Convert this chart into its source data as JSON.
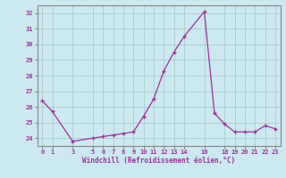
{
  "x": [
    0,
    1,
    3,
    5,
    6,
    7,
    8,
    9,
    10,
    11,
    12,
    13,
    14,
    16,
    17,
    18,
    19,
    20,
    21,
    22,
    23
  ],
  "y": [
    26.4,
    25.7,
    23.8,
    24.0,
    24.1,
    24.2,
    24.3,
    24.4,
    25.4,
    26.5,
    28.3,
    29.5,
    30.5,
    32.1,
    25.6,
    24.9,
    24.4,
    24.4,
    24.4,
    24.8,
    24.6
  ],
  "xticks": [
    0,
    1,
    3,
    5,
    6,
    7,
    8,
    9,
    10,
    11,
    12,
    13,
    14,
    16,
    18,
    19,
    20,
    21,
    22,
    23
  ],
  "yticks": [
    24,
    25,
    26,
    27,
    28,
    29,
    30,
    31,
    32
  ],
  "ylim": [
    23.5,
    32.5
  ],
  "xlim": [
    -0.5,
    23.5
  ],
  "xlabel": "Windchill (Refroidissement éolien,°C)",
  "line_color": "#993399",
  "marker": "+",
  "bg_color": "#cce8f0",
  "grid_color": "#aacccc",
  "tick_label_color": "#993399",
  "spine_color": "#888888"
}
